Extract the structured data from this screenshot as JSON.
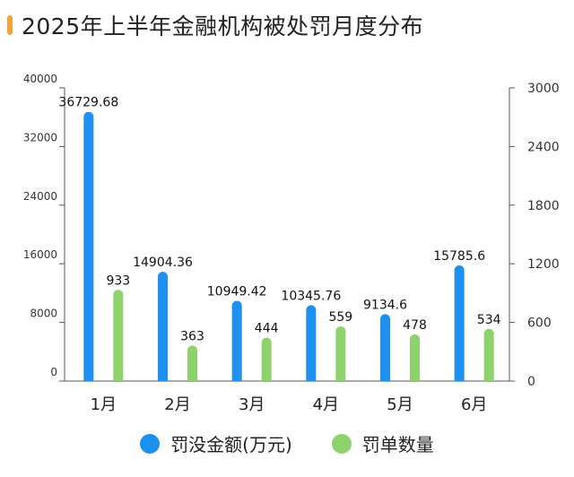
{
  "title": "2025年上半年金融机构被处罚月度分布",
  "colors": {
    "accent": "#f4a23a",
    "amount": "#1e90f0",
    "count": "#8ed26c"
  },
  "chart_data": {
    "type": "bar",
    "title": "2025年上半年金融机构被处罚月度分布",
    "categories": [
      "1月",
      "2月",
      "3月",
      "4月",
      "5月",
      "6月"
    ],
    "series": [
      {
        "name": "罚没金额(万元)",
        "axis": "left",
        "values": [
          36729.68,
          14904.36,
          10949.42,
          10345.76,
          9134.6,
          15785.6
        ],
        "labels": [
          "36729.68",
          "14904.36",
          "10949.42",
          "10345.76",
          "9134.6",
          "15785.6"
        ]
      },
      {
        "name": "罚单数量",
        "axis": "right",
        "values": [
          933,
          363,
          444,
          559,
          478,
          534
        ],
        "labels": [
          "933",
          "363",
          "444",
          "559",
          "478",
          "534"
        ]
      }
    ],
    "y_left": {
      "ylim": [
        0,
        40000
      ],
      "ticks": [
        "0",
        "8000",
        "16000",
        "24000",
        "32000",
        "40000"
      ]
    },
    "y_right": {
      "ylim": [
        0,
        3000
      ],
      "ticks": [
        "0",
        "600",
        "1200",
        "1800",
        "2400",
        "3000"
      ]
    },
    "grid": false,
    "legend": "bottom-center"
  }
}
